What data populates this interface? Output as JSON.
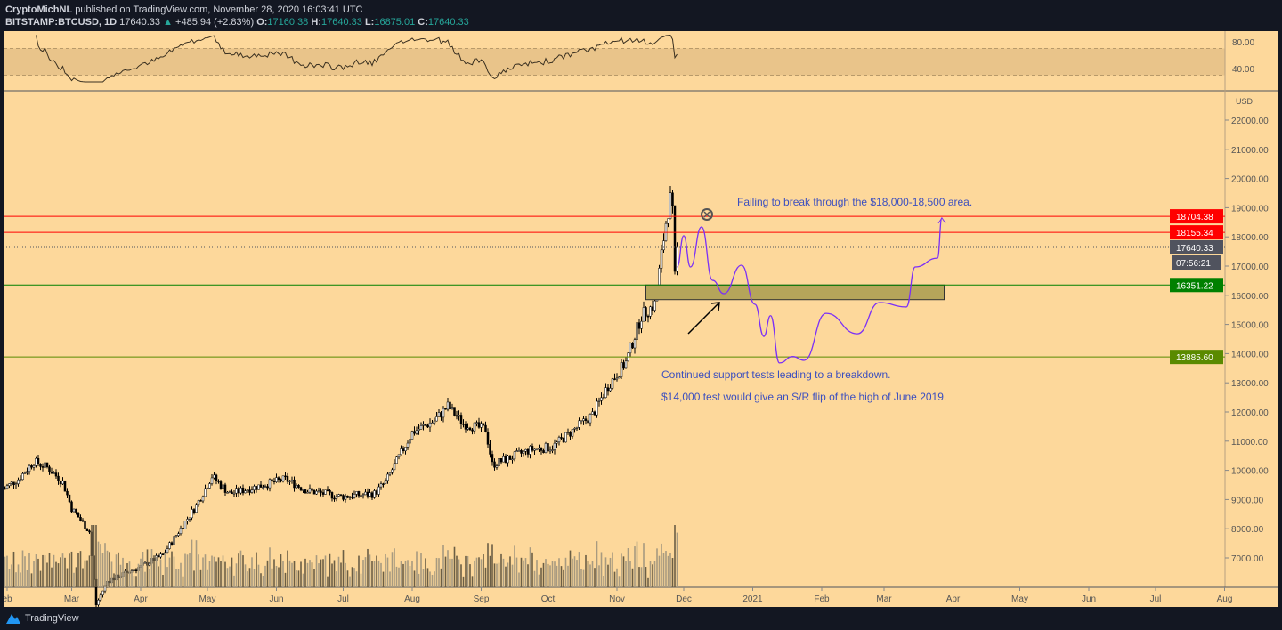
{
  "header": {
    "publisher": "CryptoMichNL",
    "published_text": "published on TradingView.com, November 28, 2020 16:03:41 UTC",
    "symbol": "BITSTAMP:BTCUSD, 1D",
    "last": "17640.33",
    "change": "+485.94 (+2.83%)",
    "o_label": "O:",
    "o": "17160.38",
    "h_label": "H:",
    "h": "17640.33",
    "l_label": "L:",
    "l": "16875.01",
    "c_label": "C:",
    "c": "17640.33"
  },
  "footer": {
    "brand": "TradingView"
  },
  "colors": {
    "bg": "#fdd89b",
    "up": "#ffffff",
    "down": "#000000",
    "red": "#ff0000",
    "green": "#008000",
    "path": "#7b2ff7",
    "text": "#3c4fbf"
  },
  "chart_data": {
    "type": "candlestick",
    "currency": "USD",
    "x_ticks": [
      "eb",
      "Mar",
      "Apr",
      "May",
      "Jun",
      "Jul",
      "Aug",
      "Sep",
      "Oct",
      "Nov",
      "Dec",
      "2021",
      "Feb",
      "Mar",
      "Apr",
      "May",
      "Jun",
      "Jul",
      "Aug"
    ],
    "y_ticks": [
      22000,
      21000,
      20000,
      19000,
      18000,
      17000,
      16000,
      15000,
      14000,
      13000,
      12000,
      11000,
      10000,
      9000,
      8000,
      7000
    ],
    "y_tick_labels": [
      "22000.00",
      "21000.00",
      "20000.00",
      "19000.00",
      "18000.00",
      "17000.00",
      "16000.00",
      "15000.00",
      "14000.00",
      "13000.00",
      "12000.00",
      "11000.00",
      "10000.00",
      "9000.00",
      "8000.00",
      "7000.00"
    ],
    "ylim": [
      6000,
      23000
    ],
    "price_keypoints_day_from_feb1": [
      [
        -3,
        9300
      ],
      [
        5,
        9700
      ],
      [
        12,
        10300
      ],
      [
        18,
        10100
      ],
      [
        25,
        9600
      ],
      [
        29,
        8700
      ],
      [
        37,
        7900
      ],
      [
        40,
        5400
      ],
      [
        45,
        6200
      ],
      [
        60,
        6700
      ],
      [
        70,
        7100
      ],
      [
        85,
        8800
      ],
      [
        92,
        9800
      ],
      [
        100,
        9200
      ],
      [
        115,
        9500
      ],
      [
        125,
        9700
      ],
      [
        135,
        9300
      ],
      [
        150,
        9100
      ],
      [
        165,
        9200
      ],
      [
        170,
        9600
      ],
      [
        182,
        11300
      ],
      [
        192,
        11700
      ],
      [
        198,
        12200
      ],
      [
        205,
        11600
      ],
      [
        215,
        11400
      ],
      [
        218,
        10200
      ],
      [
        225,
        10400
      ],
      [
        235,
        10700
      ],
      [
        245,
        10800
      ],
      [
        258,
        11600
      ],
      [
        263,
        11900
      ],
      [
        270,
        12900
      ],
      [
        278,
        13700
      ],
      [
        285,
        15300
      ],
      [
        291,
        15700
      ],
      [
        296,
        18500
      ],
      [
        298,
        19300
      ],
      [
        299,
        18800
      ],
      [
        300,
        16600
      ],
      [
        301,
        17640
      ]
    ],
    "horizontal_levels": [
      {
        "price": 18704.38,
        "label": "18704.38",
        "color": "#ff0000"
      },
      {
        "price": 18155.34,
        "label": "18155.34",
        "color": "#ff0000"
      },
      {
        "price": 17640.33,
        "label": "17640.33",
        "color": "#50535e",
        "dotted": true
      },
      {
        "price": 16351.22,
        "label": "16351.22",
        "color": "#008000"
      },
      {
        "price": 13885.6,
        "label": "13885.60",
        "color": "#5a8a00"
      }
    ],
    "countdown": "07:56:21",
    "support_box": {
      "price_top": 16351.22,
      "price_bottom": 15850,
      "day_start": 287,
      "day_end": 421
    },
    "projection_day_price": [
      [
        301,
        16970
      ],
      [
        304,
        18040
      ],
      [
        307,
        16970
      ],
      [
        312,
        18340
      ],
      [
        317,
        16510
      ],
      [
        322,
        16055
      ],
      [
        330,
        17030
      ],
      [
        336,
        15690
      ],
      [
        340,
        14590
      ],
      [
        343,
        15300
      ],
      [
        347,
        13680
      ],
      [
        353,
        13900
      ],
      [
        358,
        13770
      ],
      [
        368,
        15380
      ],
      [
        382,
        14680
      ],
      [
        392,
        15750
      ],
      [
        404,
        15600
      ],
      [
        408,
        16970
      ],
      [
        418,
        17270
      ],
      [
        420,
        18650
      ]
    ],
    "annotations": [
      "Failing to break through the $18,000-18,500 area.",
      "Continued support tests leading to a breakdown.",
      "$14,000 test would give an S/R flip of the high of June 2019."
    ],
    "rsi": {
      "ticks": [
        "80.00",
        "40.00"
      ],
      "band": [
        70,
        30
      ]
    }
  }
}
